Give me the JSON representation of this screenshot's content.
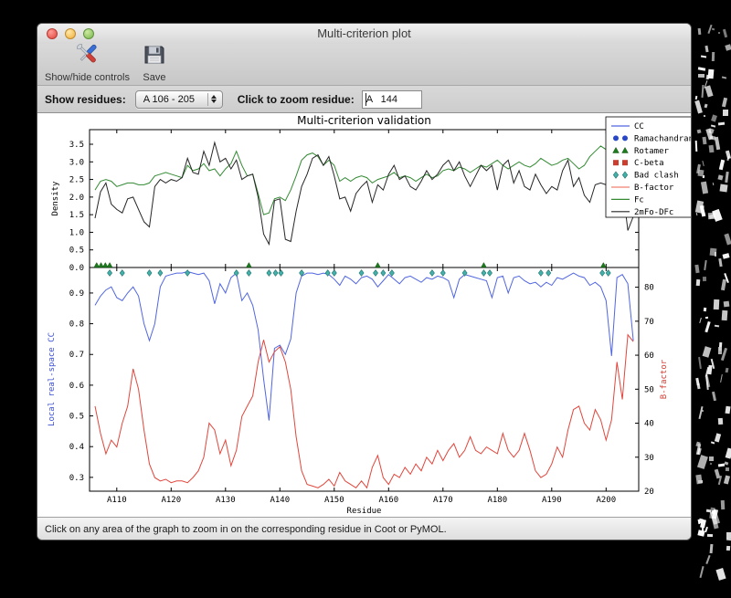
{
  "window": {
    "title": "Multi-criterion plot"
  },
  "toolbar": {
    "items": [
      {
        "label": "Show/hide controls",
        "icon": "tools-icon"
      },
      {
        "label": "Save",
        "icon": "save-icon"
      }
    ]
  },
  "controls": {
    "show_residues_label": "Show residues:",
    "show_residues_value": "A 106 - 205",
    "zoom_residue_label": "Click to zoom residue:",
    "zoom_residue_value": "A   144"
  },
  "status_bar": {
    "text": "Click on any area of the graph to zoom in on the corresponding residue in Coot or PyMOL."
  },
  "chart_data": {
    "type": "line",
    "title": "Multi-criterion validation",
    "xlabel": "Residue",
    "x_ticks": [
      "A110",
      "A120",
      "A130",
      "A140",
      "A150",
      "A160",
      "A170",
      "A180",
      "A190",
      "A200"
    ],
    "x_tick_values": [
      110,
      120,
      130,
      140,
      150,
      160,
      170,
      180,
      190,
      200
    ],
    "residues_start": 106,
    "residues_end": 205,
    "top_panel": {
      "ylabel": "Density",
      "yticks": [
        0.0,
        0.5,
        1.0,
        1.5,
        2.0,
        2.5,
        3.0,
        3.5
      ],
      "ylim": [
        0.0,
        3.92
      ],
      "series": [
        {
          "name": "Fc",
          "color": "#338a33",
          "values": [
            2.2,
            2.45,
            2.5,
            2.45,
            2.3,
            2.35,
            2.4,
            2.4,
            2.35,
            2.35,
            2.4,
            2.6,
            2.65,
            2.7,
            2.65,
            2.6,
            2.55,
            2.9,
            2.75,
            2.8,
            2.95,
            2.75,
            2.8,
            2.6,
            2.8,
            2.95,
            3.3,
            2.9,
            2.6,
            2.65,
            2.1,
            1.5,
            1.55,
            1.95,
            2.0,
            1.9,
            2.2,
            2.6,
            3.05,
            3.2,
            3.25,
            3.15,
            2.9,
            3.05,
            2.9,
            2.45,
            2.55,
            2.45,
            2.55,
            2.6,
            2.55,
            2.4,
            2.5,
            2.55,
            2.6,
            2.7,
            2.55,
            2.6,
            2.55,
            2.45,
            2.55,
            2.65,
            2.55,
            2.6,
            2.75,
            2.8,
            2.75,
            2.85,
            2.8,
            2.7,
            2.8,
            2.9,
            2.85,
            2.95,
            3.05,
            2.9,
            2.8,
            2.9,
            3.0,
            2.9,
            2.85,
            2.95,
            3.1,
            3.0,
            2.9,
            2.95,
            3.05,
            3.1,
            2.95,
            2.8,
            2.9,
            3.15,
            3.3,
            3.45,
            3.35,
            3.2,
            2.9,
            3.25,
            3.35,
            3.3
          ]
        },
        {
          "name": "2mFo-DFc",
          "color": "#262626",
          "values": [
            1.4,
            2.15,
            2.4,
            1.8,
            1.65,
            1.55,
            1.95,
            2.0,
            1.65,
            1.3,
            1.15,
            2.3,
            2.5,
            2.4,
            2.5,
            2.45,
            2.55,
            3.1,
            2.7,
            2.65,
            3.3,
            2.9,
            3.55,
            3.0,
            3.1,
            2.8,
            3.05,
            2.5,
            2.6,
            2.65,
            2.0,
            0.95,
            0.66,
            1.9,
            1.95,
            0.8,
            0.74,
            1.6,
            2.3,
            2.65,
            3.1,
            3.2,
            2.9,
            3.15,
            2.6,
            1.95,
            2.0,
            1.6,
            2.1,
            2.3,
            2.45,
            1.85,
            2.35,
            2.2,
            2.65,
            2.9,
            2.5,
            2.6,
            2.3,
            2.2,
            2.45,
            2.75,
            2.5,
            2.65,
            2.9,
            3.05,
            2.75,
            3.0,
            2.6,
            2.3,
            2.6,
            2.9,
            2.75,
            2.9,
            2.2,
            2.9,
            3.05,
            2.4,
            2.75,
            2.3,
            2.2,
            2.65,
            2.35,
            2.1,
            2.3,
            2.2,
            2.75,
            3.05,
            2.3,
            2.55,
            2.05,
            1.85,
            2.35,
            2.4,
            2.35,
            2.3,
            2.45,
            2.35,
            1.05,
            1.45
          ]
        }
      ]
    },
    "bottom_panel": {
      "left_axis": {
        "label": "Local real-space CC",
        "color": "#3a4fd8",
        "yticks": [
          0.3,
          0.4,
          0.5,
          0.6,
          0.7,
          0.8,
          0.9
        ],
        "ylim": [
          0.255,
          0.983
        ]
      },
      "right_axis": {
        "label": "B-factor",
        "color": "#d43c32",
        "yticks": [
          20,
          30,
          40,
          50,
          60,
          70,
          80
        ],
        "ylim": [
          20,
          85.8
        ]
      },
      "series": [
        {
          "name": "CC",
          "axis": "left",
          "color": "#5166e0",
          "values": [
            0.86,
            0.89,
            0.91,
            0.92,
            0.885,
            0.875,
            0.9,
            0.92,
            0.89,
            0.8,
            0.745,
            0.8,
            0.92,
            0.955,
            0.96,
            0.965,
            0.965,
            0.97,
            0.965,
            0.96,
            0.965,
            0.94,
            0.865,
            0.93,
            0.9,
            0.95,
            0.965,
            0.875,
            0.9,
            0.86,
            0.78,
            0.62,
            0.485,
            0.72,
            0.73,
            0.7,
            0.75,
            0.9,
            0.955,
            0.965,
            0.965,
            0.96,
            0.965,
            0.96,
            0.945,
            0.925,
            0.955,
            0.945,
            0.93,
            0.95,
            0.955,
            0.945,
            0.92,
            0.94,
            0.96,
            0.945,
            0.93,
            0.95,
            0.955,
            0.945,
            0.935,
            0.95,
            0.945,
            0.955,
            0.95,
            0.94,
            0.885,
            0.945,
            0.96,
            0.955,
            0.95,
            0.945,
            0.94,
            0.885,
            0.95,
            0.955,
            0.9,
            0.95,
            0.955,
            0.94,
            0.93,
            0.935,
            0.92,
            0.935,
            0.925,
            0.95,
            0.945,
            0.955,
            0.965,
            0.955,
            0.95,
            0.925,
            0.935,
            0.92,
            0.875,
            0.695,
            0.95,
            0.96,
            0.93,
            0.745
          ]
        },
        {
          "name": "B-factor",
          "axis": "right",
          "color": "#e0463c",
          "values": [
            45,
            37,
            31,
            35,
            33,
            40,
            45,
            56,
            50,
            38,
            28,
            24,
            23,
            23.5,
            22.5,
            23,
            23,
            22.5,
            24,
            26,
            30,
            40,
            38,
            31,
            35,
            27.5,
            32,
            42,
            45,
            48,
            58,
            64.5,
            58,
            61,
            62.5,
            58,
            50,
            36,
            26,
            22,
            21.5,
            21,
            22,
            23.5,
            21.5,
            25.5,
            23,
            22,
            21,
            23,
            21,
            27,
            30.5,
            24,
            22,
            25,
            24,
            27,
            25,
            28,
            26,
            30,
            28,
            32,
            29,
            32,
            34,
            30,
            32,
            36,
            32,
            31,
            33,
            32,
            31,
            37,
            32,
            30,
            32,
            37,
            32,
            26,
            24,
            25,
            28,
            33,
            30,
            38,
            44,
            45,
            40,
            38,
            44,
            41,
            35,
            41,
            58,
            47,
            66,
            64
          ]
        }
      ],
      "markers": [
        {
          "name": "Rotamer",
          "shape": "triangle",
          "color": "#1e7a1e",
          "residues": [
            106.3,
            107.1,
            107.9,
            108.7,
            134.3,
            158,
            177.5,
            199.5
          ]
        },
        {
          "name": "Bad clash",
          "shape": "diamond",
          "color": "#43b0aa",
          "residues": [
            108.7,
            111,
            116,
            118,
            123,
            132,
            134.3,
            138,
            139.2,
            140.2,
            144,
            148.8,
            150,
            155,
            157.6,
            159,
            160.6,
            168,
            170,
            174,
            177.5,
            178.6,
            188,
            189.4,
            199.3,
            200.4
          ]
        }
      ]
    },
    "legend": [
      {
        "label": "CC",
        "swatch": "line",
        "color": "#5166e0"
      },
      {
        "label": "Ramachandran",
        "swatch": "dots",
        "color": "#2847c8"
      },
      {
        "label": "Rotamer",
        "swatch": "triangles",
        "color": "#1e7a1e"
      },
      {
        "label": "C-beta",
        "swatch": "squares",
        "color": "#cc3d2e"
      },
      {
        "label": "Bad clash",
        "swatch": "diamonds",
        "color": "#43b0aa"
      },
      {
        "label": "B-factor",
        "swatch": "line",
        "color": "#f08070"
      },
      {
        "label": "Fc",
        "swatch": "line",
        "color": "#338a33"
      },
      {
        "label": "2mFo-DFc",
        "swatch": "line",
        "color": "#262626"
      }
    ]
  }
}
